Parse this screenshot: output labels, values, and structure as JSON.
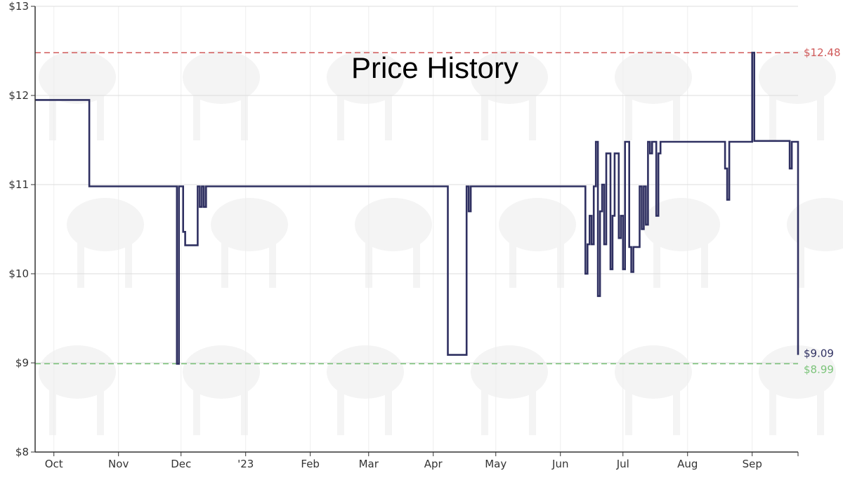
{
  "chart_data": {
    "type": "line",
    "title": "Price History",
    "xlabel": "",
    "ylabel": "",
    "x_axis": {
      "type": "date",
      "range": [
        "2022-09-22",
        "2023-09-23"
      ],
      "tick_labels": [
        "Oct",
        "Nov",
        "Dec",
        "'23",
        "Feb",
        "Mar",
        "Apr",
        "May",
        "Jun",
        "Jul",
        "Aug",
        "Sep"
      ],
      "tick_dates": [
        "2022-10-01",
        "2022-11-01",
        "2022-12-01",
        "2023-01-01",
        "2023-02-01",
        "2023-03-01",
        "2023-04-01",
        "2023-05-01",
        "2023-06-01",
        "2023-07-01",
        "2023-08-01",
        "2023-09-01"
      ]
    },
    "y_axis": {
      "range": [
        8,
        13
      ],
      "tick_values": [
        8,
        9,
        10,
        11,
        12,
        13
      ],
      "tick_labels": [
        "$8",
        "$9",
        "$10",
        "$11",
        "$12",
        "$13"
      ]
    },
    "grid": true,
    "series": [
      {
        "color": "#2f3061",
        "style": "step",
        "points": [
          [
            "2022-09-22",
            11.95
          ],
          [
            "2022-10-18",
            11.95
          ],
          [
            "2022-10-18",
            10.98
          ],
          [
            "2022-11-29",
            10.98
          ],
          [
            "2022-11-29",
            8.99
          ],
          [
            "2022-11-30",
            8.99
          ],
          [
            "2022-11-30",
            10.98
          ],
          [
            "2022-12-02",
            10.98
          ],
          [
            "2022-12-02",
            10.47
          ],
          [
            "2022-12-03",
            10.47
          ],
          [
            "2022-12-03",
            10.32
          ],
          [
            "2022-12-09",
            10.32
          ],
          [
            "2022-12-09",
            10.98
          ],
          [
            "2022-12-10",
            10.98
          ],
          [
            "2022-12-10",
            10.75
          ],
          [
            "2022-12-11",
            10.75
          ],
          [
            "2022-12-11",
            10.98
          ],
          [
            "2022-12-12",
            10.98
          ],
          [
            "2022-12-12",
            10.75
          ],
          [
            "2022-12-13",
            10.75
          ],
          [
            "2022-12-13",
            10.98
          ],
          [
            "2023-04-08",
            10.98
          ],
          [
            "2023-04-08",
            9.09
          ],
          [
            "2023-04-17",
            9.09
          ],
          [
            "2023-04-17",
            10.98
          ],
          [
            "2023-04-18",
            10.98
          ],
          [
            "2023-04-18",
            10.7
          ],
          [
            "2023-04-19",
            10.7
          ],
          [
            "2023-04-19",
            10.98
          ],
          [
            "2023-06-13",
            10.98
          ],
          [
            "2023-06-13",
            10.0
          ],
          [
            "2023-06-14",
            10.0
          ],
          [
            "2023-06-14",
            10.33
          ],
          [
            "2023-06-15",
            10.33
          ],
          [
            "2023-06-15",
            10.65
          ],
          [
            "2023-06-16",
            10.65
          ],
          [
            "2023-06-16",
            10.33
          ],
          [
            "2023-06-17",
            10.33
          ],
          [
            "2023-06-17",
            10.98
          ],
          [
            "2023-06-18",
            10.98
          ],
          [
            "2023-06-18",
            11.48
          ],
          [
            "2023-06-19",
            11.48
          ],
          [
            "2023-06-19",
            9.75
          ],
          [
            "2023-06-20",
            9.75
          ],
          [
            "2023-06-20",
            10.7
          ],
          [
            "2023-06-21",
            10.7
          ],
          [
            "2023-06-21",
            11.0
          ],
          [
            "2023-06-22",
            11.0
          ],
          [
            "2023-06-22",
            10.33
          ],
          [
            "2023-06-23",
            10.33
          ],
          [
            "2023-06-23",
            11.35
          ],
          [
            "2023-06-25",
            11.35
          ],
          [
            "2023-06-25",
            10.05
          ],
          [
            "2023-06-26",
            10.05
          ],
          [
            "2023-06-26",
            10.65
          ],
          [
            "2023-06-27",
            10.65
          ],
          [
            "2023-06-27",
            11.35
          ],
          [
            "2023-06-29",
            11.35
          ],
          [
            "2023-06-29",
            10.4
          ],
          [
            "2023-06-30",
            10.4
          ],
          [
            "2023-06-30",
            10.65
          ],
          [
            "2023-07-01",
            10.65
          ],
          [
            "2023-07-01",
            10.05
          ],
          [
            "2023-07-02",
            10.05
          ],
          [
            "2023-07-02",
            11.48
          ],
          [
            "2023-07-04",
            11.48
          ],
          [
            "2023-07-04",
            10.3
          ],
          [
            "2023-07-05",
            10.3
          ],
          [
            "2023-07-05",
            10.02
          ],
          [
            "2023-07-06",
            10.02
          ],
          [
            "2023-07-06",
            10.3
          ],
          [
            "2023-07-09",
            10.3
          ],
          [
            "2023-07-09",
            10.98
          ],
          [
            "2023-07-10",
            10.98
          ],
          [
            "2023-07-10",
            10.5
          ],
          [
            "2023-07-11",
            10.5
          ],
          [
            "2023-07-11",
            10.98
          ],
          [
            "2023-07-12",
            10.98
          ],
          [
            "2023-07-12",
            10.55
          ],
          [
            "2023-07-13",
            10.55
          ],
          [
            "2023-07-13",
            11.48
          ],
          [
            "2023-07-14",
            11.48
          ],
          [
            "2023-07-14",
            11.35
          ],
          [
            "2023-07-15",
            11.35
          ],
          [
            "2023-07-15",
            11.48
          ],
          [
            "2023-07-17",
            11.48
          ],
          [
            "2023-07-17",
            10.65
          ],
          [
            "2023-07-18",
            10.65
          ],
          [
            "2023-07-18",
            11.35
          ],
          [
            "2023-07-19",
            11.35
          ],
          [
            "2023-07-19",
            11.48
          ],
          [
            "2023-08-19",
            11.48
          ],
          [
            "2023-08-19",
            11.18
          ],
          [
            "2023-08-20",
            11.18
          ],
          [
            "2023-08-20",
            10.83
          ],
          [
            "2023-08-21",
            10.83
          ],
          [
            "2023-08-21",
            11.48
          ],
          [
            "2023-09-01",
            11.48
          ],
          [
            "2023-09-01",
            12.48
          ],
          [
            "2023-09-02",
            12.48
          ],
          [
            "2023-09-02",
            11.49
          ],
          [
            "2023-09-19",
            11.49
          ],
          [
            "2023-09-19",
            11.18
          ],
          [
            "2023-09-20",
            11.18
          ],
          [
            "2023-09-20",
            11.48
          ],
          [
            "2023-09-23",
            11.48
          ],
          [
            "2023-09-23",
            9.09
          ]
        ]
      }
    ],
    "reference_lines": [
      {
        "label": "$12.48",
        "value": 12.48,
        "color": "#d05a5a",
        "style": "dashed"
      },
      {
        "label": "$8.99",
        "value": 8.99,
        "color": "#7cc47a",
        "style": "dashed"
      }
    ],
    "current_label": {
      "text": "$9.09",
      "value": 9.09,
      "color": "#2f3061"
    },
    "legend": "none"
  }
}
